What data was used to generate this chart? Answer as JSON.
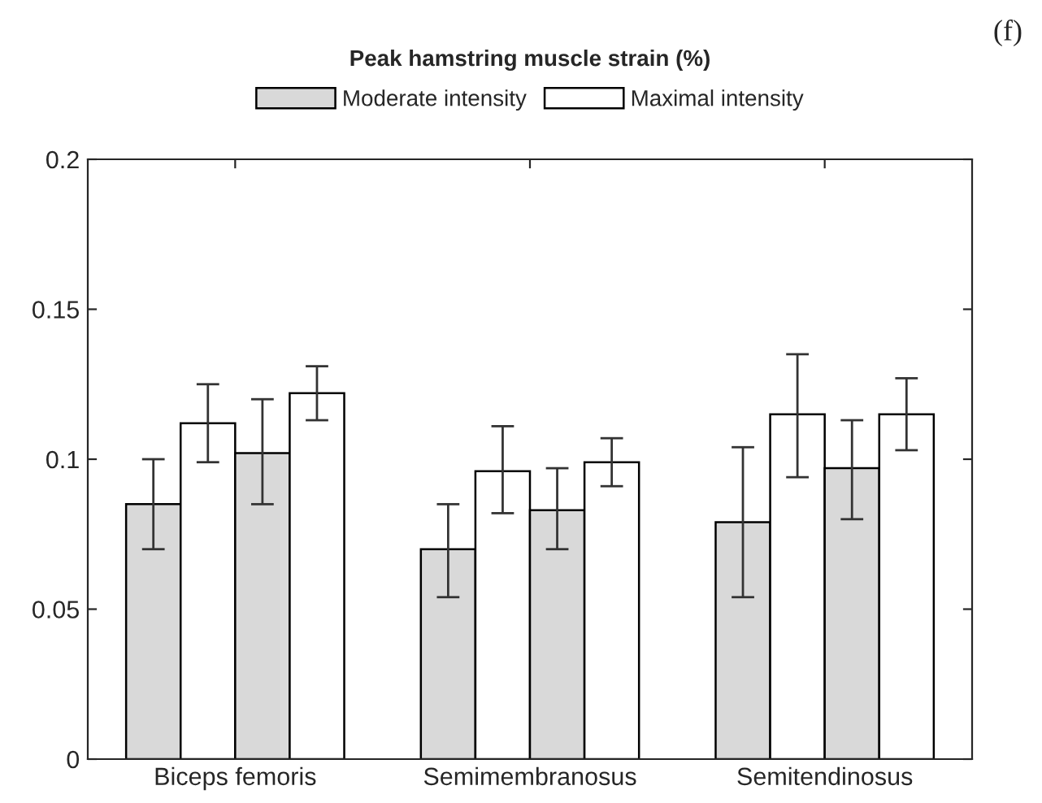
{
  "chart_data": {
    "type": "bar",
    "title": "Peak hamstring muscle strain (%)",
    "annotations": [
      "(f)"
    ],
    "categories": [
      "Biceps femoris",
      "Semimembranosus",
      "Semitendinosus"
    ],
    "series": [
      {
        "name": "Moderate intensity",
        "color": "#d9d9d9",
        "values": [
          0.085,
          0.07,
          0.079
        ],
        "errors": [
          [
            0.07,
            0.1
          ],
          [
            0.054,
            0.085
          ],
          [
            0.054,
            0.104
          ]
        ]
      },
      {
        "name": "Maximal intensity",
        "color": "#ffffff",
        "values": [
          0.112,
          0.096,
          0.115
        ],
        "errors": [
          [
            0.099,
            0.125
          ],
          [
            0.082,
            0.111
          ],
          [
            0.094,
            0.135
          ]
        ]
      },
      {
        "color": "#d9d9d9",
        "values": [
          0.102,
          0.083,
          0.097
        ],
        "errors": [
          [
            0.085,
            0.12
          ],
          [
            0.07,
            0.097
          ],
          [
            0.08,
            0.113
          ]
        ]
      },
      {
        "color": "#ffffff",
        "values": [
          0.122,
          0.099,
          0.115
        ],
        "errors": [
          [
            0.113,
            0.131
          ],
          [
            0.091,
            0.107
          ],
          [
            0.103,
            0.127
          ]
        ]
      }
    ],
    "ylim": [
      0,
      0.2
    ],
    "yticks": [
      0,
      0.05,
      0.1,
      0.15,
      0.2
    ],
    "grid": false,
    "legend": "top"
  }
}
